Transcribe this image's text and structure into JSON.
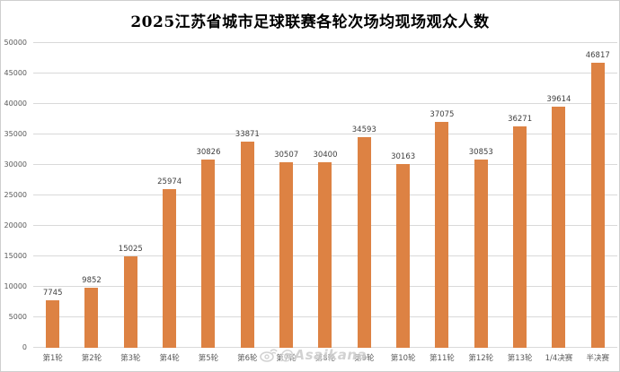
{
  "chart_data": {
    "type": "bar",
    "title": "2025江苏省城市足球联赛各轮次场均现场观众人数",
    "categories": [
      "第1轮",
      "第2轮",
      "第3轮",
      "第4轮",
      "第5轮",
      "第6轮",
      "第7轮",
      "第8轮",
      "第9轮",
      "第10轮",
      "第11轮",
      "第12轮",
      "第13轮",
      "1/4决赛",
      "半决赛"
    ],
    "values": [
      7745,
      9852,
      15025,
      25974,
      30826,
      33871,
      30507,
      30400,
      34593,
      30163,
      37075,
      30853,
      36271,
      39614,
      46817
    ],
    "xlabel": "",
    "ylabel": "",
    "ylim": [
      0,
      50000
    ],
    "yticks": [
      0,
      5000,
      10000,
      15000,
      20000,
      25000,
      30000,
      35000,
      40000,
      45000,
      50000
    ],
    "grid": true,
    "legend": false,
    "value_labels_shown": true
  },
  "colors": {
    "bar": "#DD8243",
    "gridline": "#D9D9D9",
    "tick_text": "#595959",
    "value_label": "#404040",
    "title": "#000000",
    "background": "#FFFFFF"
  },
  "watermark": {
    "icon": "weibo-eye",
    "text": "@Asaikana"
  }
}
